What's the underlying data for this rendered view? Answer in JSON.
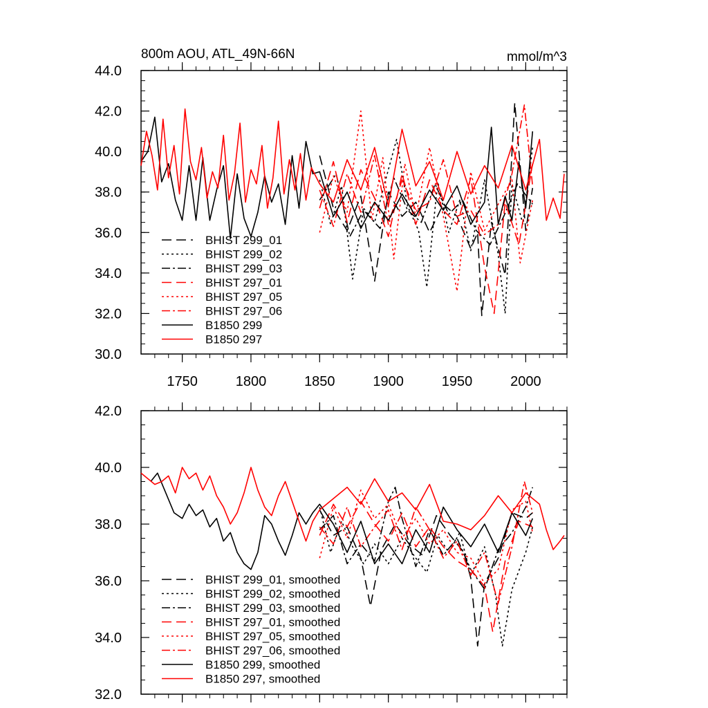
{
  "chart_data": [
    {
      "type": "line",
      "title": "800m AOU, ATL_49N-66N",
      "units": "mmol/m^3",
      "xlim": [
        1720,
        2030
      ],
      "ylim": [
        30,
        44
      ],
      "x_ticks": [
        1750,
        1800,
        1850,
        1900,
        1950,
        2000
      ],
      "x_tick_labels": [
        "1750",
        "1800",
        "1850",
        "1900",
        "1950",
        "2000"
      ],
      "y_ticks": [
        30,
        32,
        34,
        36,
        38,
        40,
        42,
        44
      ],
      "y_tick_labels": [
        "30.0",
        "32.0",
        "34.0",
        "36.0",
        "38.0",
        "40.0",
        "42.0",
        "44.0"
      ],
      "series": [
        {
          "name": "BHIST 299_01",
          "color": "#000000",
          "dash": "dash",
          "x": [
            1850,
            1860,
            1870,
            1880,
            1890,
            1900,
            1910,
            1920,
            1930,
            1940,
            1950,
            1960,
            1965,
            1968,
            1975,
            1985,
            1992,
            2000,
            2005
          ],
          "values": [
            39.8,
            37.2,
            36.1,
            37.8,
            33.6,
            38.0,
            36.8,
            37.5,
            36.0,
            37.4,
            36.8,
            35.2,
            36.0,
            31.9,
            36.5,
            33.9,
            42.4,
            36.1,
            38.2
          ]
        },
        {
          "name": "BHIST 299_02",
          "color": "#000000",
          "dash": "dot",
          "x": [
            1850,
            1858,
            1866,
            1874,
            1882,
            1890,
            1898,
            1906,
            1914,
            1922,
            1928,
            1936,
            1944,
            1952,
            1960,
            1970,
            1980,
            1985,
            1990,
            1998,
            2005
          ],
          "values": [
            38.6,
            36.4,
            38.3,
            33.7,
            37.2,
            36.5,
            38.6,
            40.6,
            37.3,
            36.1,
            33.3,
            38.5,
            36.0,
            37.6,
            35.1,
            38.6,
            34.9,
            32.0,
            38.4,
            36.4,
            40.2
          ]
        },
        {
          "name": "BHIST 299_03",
          "color": "#000000",
          "dash": "dashdot",
          "x": [
            1850,
            1862,
            1872,
            1882,
            1894,
            1904,
            1914,
            1924,
            1934,
            1944,
            1954,
            1964,
            1974,
            1984,
            1994,
            2005
          ],
          "values": [
            37.6,
            38.9,
            35.8,
            37.1,
            36.2,
            38.7,
            37.1,
            36.5,
            38.4,
            36.9,
            37.6,
            36.1,
            35.4,
            36.8,
            38.4,
            37.4
          ]
        },
        {
          "name": "BHIST 297_01",
          "color": "#ff0000",
          "dash": "dash",
          "x": [
            1850,
            1860,
            1870,
            1880,
            1890,
            1900,
            1910,
            1920,
            1930,
            1940,
            1950,
            1960,
            1970,
            1977,
            1985,
            1995,
            2005
          ],
          "values": [
            37.2,
            39.5,
            36.5,
            39.1,
            37.7,
            35.8,
            38.9,
            36.4,
            38.6,
            37.1,
            36.4,
            38.7,
            34.3,
            32.0,
            37.5,
            35.4,
            39.4
          ]
        },
        {
          "name": "BHIST 297_05",
          "color": "#ff0000",
          "dash": "dot",
          "x": [
            1850,
            1860,
            1870,
            1880,
            1888,
            1896,
            1904,
            1912,
            1920,
            1930,
            1940,
            1950,
            1960,
            1970,
            1980,
            1990,
            1996,
            2005
          ],
          "values": [
            36.0,
            38.8,
            37.0,
            42.0,
            36.6,
            39.7,
            34.7,
            39.4,
            36.8,
            40.2,
            36.8,
            33.1,
            39.0,
            36.1,
            37.4,
            38.6,
            34.5,
            37.6
          ]
        },
        {
          "name": "BHIST 297_06",
          "color": "#ff0000",
          "dash": "dashdot",
          "x": [
            1850,
            1860,
            1870,
            1880,
            1890,
            1900,
            1910,
            1920,
            1930,
            1940,
            1950,
            1960,
            1970,
            1980,
            1990,
            1999,
            2005
          ],
          "values": [
            38.1,
            36.3,
            38.9,
            37.0,
            39.8,
            36.4,
            38.6,
            37.1,
            37.5,
            39.6,
            36.8,
            37.1,
            35.9,
            36.4,
            38.9,
            42.3,
            38.3
          ]
        },
        {
          "name": "B1850 299",
          "color": "#000000",
          "dash": "solid",
          "x": [
            1720,
            1725,
            1730,
            1735,
            1740,
            1745,
            1750,
            1755,
            1760,
            1765,
            1770,
            1775,
            1780,
            1785,
            1790,
            1795,
            1800,
            1805,
            1810,
            1815,
            1820,
            1825,
            1830,
            1835,
            1840,
            1845,
            1850,
            1860,
            1870,
            1880,
            1890,
            1900,
            1910,
            1920,
            1930,
            1940,
            1950,
            1960,
            1970,
            1975,
            1980,
            1985,
            1990,
            1995,
            2000,
            2005
          ],
          "values": [
            39.5,
            40.0,
            41.7,
            38.5,
            39.4,
            37.6,
            36.6,
            39.3,
            36.6,
            39.7,
            36.6,
            38.1,
            39.3,
            35.7,
            38.9,
            36.7,
            35.8,
            37.0,
            38.8,
            37.5,
            38.4,
            36.4,
            39.8,
            37.2,
            40.5,
            38.9,
            39.0,
            36.8,
            38.0,
            36.2,
            37.5,
            36.6,
            37.9,
            36.8,
            38.1,
            37.1,
            38.3,
            36.4,
            37.5,
            41.2,
            36.4,
            37.8,
            36.6,
            39.5,
            37.2,
            41.0
          ]
        },
        {
          "name": "B1850 297",
          "color": "#ff0000",
          "dash": "solid",
          "x": [
            1720,
            1724,
            1728,
            1732,
            1736,
            1740,
            1744,
            1748,
            1752,
            1756,
            1760,
            1764,
            1768,
            1772,
            1776,
            1780,
            1784,
            1788,
            1792,
            1796,
            1800,
            1804,
            1808,
            1812,
            1816,
            1820,
            1824,
            1828,
            1832,
            1836,
            1840,
            1844,
            1850,
            1860,
            1870,
            1880,
            1890,
            1900,
            1910,
            1920,
            1930,
            1940,
            1950,
            1960,
            1970,
            1980,
            1990,
            2000,
            2010,
            2015,
            2020,
            2025,
            2028
          ],
          "values": [
            39.3,
            41.0,
            39.8,
            38.1,
            41.6,
            38.7,
            40.3,
            37.9,
            42.1,
            39.5,
            38.6,
            40.2,
            37.7,
            39.0,
            38.2,
            40.8,
            37.6,
            38.9,
            41.4,
            37.5,
            39.1,
            38.4,
            40.3,
            37.2,
            38.7,
            41.5,
            37.9,
            39.6,
            38.1,
            39.9,
            37.6,
            39.2,
            38.4,
            37.5,
            39.6,
            38.1,
            40.2,
            37.3,
            41.1,
            38.3,
            39.5,
            37.6,
            40.0,
            37.9,
            39.3,
            38.2,
            40.3,
            38.1,
            40.6,
            36.6,
            37.7,
            36.7,
            38.9
          ]
        }
      ],
      "legend_position": "bottom-left"
    },
    {
      "type": "line",
      "title": "",
      "xlim": [
        1720,
        2030
      ],
      "ylim": [
        32,
        42
      ],
      "x_ticks": [
        1750,
        1800,
        1850,
        1900,
        1950,
        2000
      ],
      "y_ticks": [
        32,
        34,
        36,
        38,
        40,
        42
      ],
      "y_tick_labels": [
        "32.0",
        "34.0",
        "36.0",
        "38.0",
        "40.0",
        "42.0"
      ],
      "series": [
        {
          "name": "BHIST 299_01, smoothed",
          "color": "#000000",
          "dash": "dash",
          "x": [
            1850,
            1860,
            1870,
            1880,
            1887,
            1895,
            1905,
            1915,
            1925,
            1935,
            1945,
            1955,
            1960,
            1965,
            1970,
            1980,
            1990,
            2000,
            2005
          ],
          "values": [
            38.5,
            37.6,
            37.9,
            36.8,
            35.1,
            37.1,
            38.0,
            37.3,
            36.9,
            38.3,
            37.6,
            37.0,
            36.1,
            33.7,
            35.9,
            36.8,
            38.4,
            38.2,
            38.4
          ]
        },
        {
          "name": "BHIST 299_02, smoothed",
          "color": "#000000",
          "dash": "dot",
          "x": [
            1850,
            1858,
            1866,
            1874,
            1882,
            1890,
            1900,
            1910,
            1920,
            1928,
            1936,
            1944,
            1952,
            1960,
            1970,
            1978,
            1983,
            1990,
            2000,
            2005
          ],
          "values": [
            38.6,
            37.0,
            38.1,
            37.2,
            36.6,
            37.3,
            36.6,
            37.5,
            36.8,
            36.3,
            37.6,
            37.0,
            37.7,
            36.2,
            37.2,
            35.5,
            33.7,
            35.7,
            37.0,
            37.9
          ]
        },
        {
          "name": "BHIST 299_03, smoothed",
          "color": "#000000",
          "dash": "dashdot",
          "x": [
            1850,
            1860,
            1870,
            1880,
            1890,
            1900,
            1905,
            1910,
            1920,
            1930,
            1940,
            1950,
            1960,
            1970,
            1980,
            1990,
            2000,
            2005
          ],
          "values": [
            37.8,
            38.3,
            36.6,
            37.3,
            36.7,
            38.8,
            39.3,
            38.2,
            36.5,
            37.8,
            36.9,
            37.5,
            36.4,
            35.7,
            37.1,
            37.7,
            38.6,
            39.3
          ]
        },
        {
          "name": "BHIST 297_01, smoothed",
          "color": "#ff0000",
          "dash": "dash",
          "x": [
            1850,
            1860,
            1870,
            1880,
            1890,
            1900,
            1910,
            1920,
            1930,
            1940,
            1950,
            1960,
            1970,
            1976,
            1985,
            1995,
            2005
          ],
          "values": [
            37.6,
            38.7,
            37.9,
            38.8,
            38.0,
            37.4,
            38.4,
            37.2,
            37.9,
            37.2,
            36.7,
            36.4,
            35.8,
            34.2,
            36.7,
            38.1,
            37.9
          ]
        },
        {
          "name": "BHIST 297_05, smoothed",
          "color": "#ff0000",
          "dash": "dot",
          "x": [
            1850,
            1860,
            1870,
            1880,
            1890,
            1900,
            1910,
            1920,
            1930,
            1940,
            1950,
            1960,
            1970,
            1980,
            1990,
            2000,
            2005
          ],
          "values": [
            36.8,
            38.6,
            37.5,
            39.2,
            38.2,
            38.7,
            37.5,
            38.2,
            37.3,
            37.8,
            37.0,
            36.8,
            35.9,
            36.4,
            38.5,
            38.8,
            37.7
          ]
        },
        {
          "name": "BHIST 297_06, smoothed",
          "color": "#ff0000",
          "dash": "dashdot",
          "x": [
            1850,
            1860,
            1870,
            1880,
            1890,
            1900,
            1910,
            1920,
            1930,
            1940,
            1950,
            1960,
            1970,
            1980,
            1990,
            1999,
            2005
          ],
          "values": [
            37.9,
            37.3,
            38.6,
            37.2,
            37.9,
            38.5,
            37.1,
            38.6,
            37.8,
            36.8,
            37.4,
            36.2,
            37.0,
            35.2,
            37.2,
            39.5,
            38.4
          ]
        },
        {
          "name": "B1850 299, smoothed",
          "color": "#000000",
          "dash": "solid",
          "x": [
            1727,
            1732,
            1738,
            1744,
            1750,
            1755,
            1760,
            1765,
            1770,
            1775,
            1780,
            1785,
            1790,
            1795,
            1800,
            1805,
            1810,
            1815,
            1820,
            1825,
            1830,
            1835,
            1840,
            1845,
            1850,
            1860,
            1870,
            1880,
            1890,
            1900,
            1910,
            1920,
            1930,
            1940,
            1950,
            1960,
            1970,
            1980,
            1990,
            2000,
            2005
          ],
          "values": [
            39.5,
            39.8,
            39.1,
            38.4,
            38.2,
            38.7,
            38.3,
            38.5,
            37.9,
            38.2,
            37.4,
            37.7,
            37.0,
            36.6,
            36.4,
            37.0,
            38.3,
            38.0,
            37.4,
            36.9,
            37.6,
            38.4,
            38.0,
            38.4,
            38.7,
            38.0,
            37.0,
            38.1,
            36.6,
            37.3,
            36.6,
            37.8,
            37.0,
            38.6,
            37.8,
            37.2,
            38.0,
            37.0,
            38.4,
            37.6,
            38.2
          ]
        },
        {
          "name": "B1850 297, smoothed",
          "color": "#ff0000",
          "dash": "solid",
          "x": [
            1720,
            1725,
            1730,
            1735,
            1740,
            1745,
            1750,
            1755,
            1760,
            1765,
            1770,
            1775,
            1780,
            1785,
            1790,
            1795,
            1800,
            1805,
            1810,
            1815,
            1820,
            1825,
            1830,
            1835,
            1840,
            1845,
            1850,
            1860,
            1870,
            1880,
            1890,
            1900,
            1910,
            1920,
            1930,
            1940,
            1950,
            1960,
            1970,
            1980,
            1990,
            2000,
            2010,
            2015,
            2020,
            2025,
            2028
          ],
          "values": [
            39.8,
            39.6,
            39.4,
            39.5,
            39.7,
            39.1,
            40.0,
            39.6,
            39.8,
            39.2,
            39.7,
            39.0,
            38.6,
            38.0,
            38.4,
            39.1,
            40.0,
            39.2,
            38.6,
            38.3,
            39.0,
            39.5,
            38.8,
            38.1,
            37.4,
            38.1,
            38.5,
            38.9,
            39.3,
            38.7,
            39.6,
            38.8,
            39.1,
            38.5,
            39.4,
            38.1,
            38.0,
            37.8,
            38.3,
            39.0,
            38.4,
            39.1,
            38.7,
            37.8,
            37.1,
            37.4,
            37.6
          ]
        }
      ],
      "legend_position": "bottom-left"
    }
  ]
}
